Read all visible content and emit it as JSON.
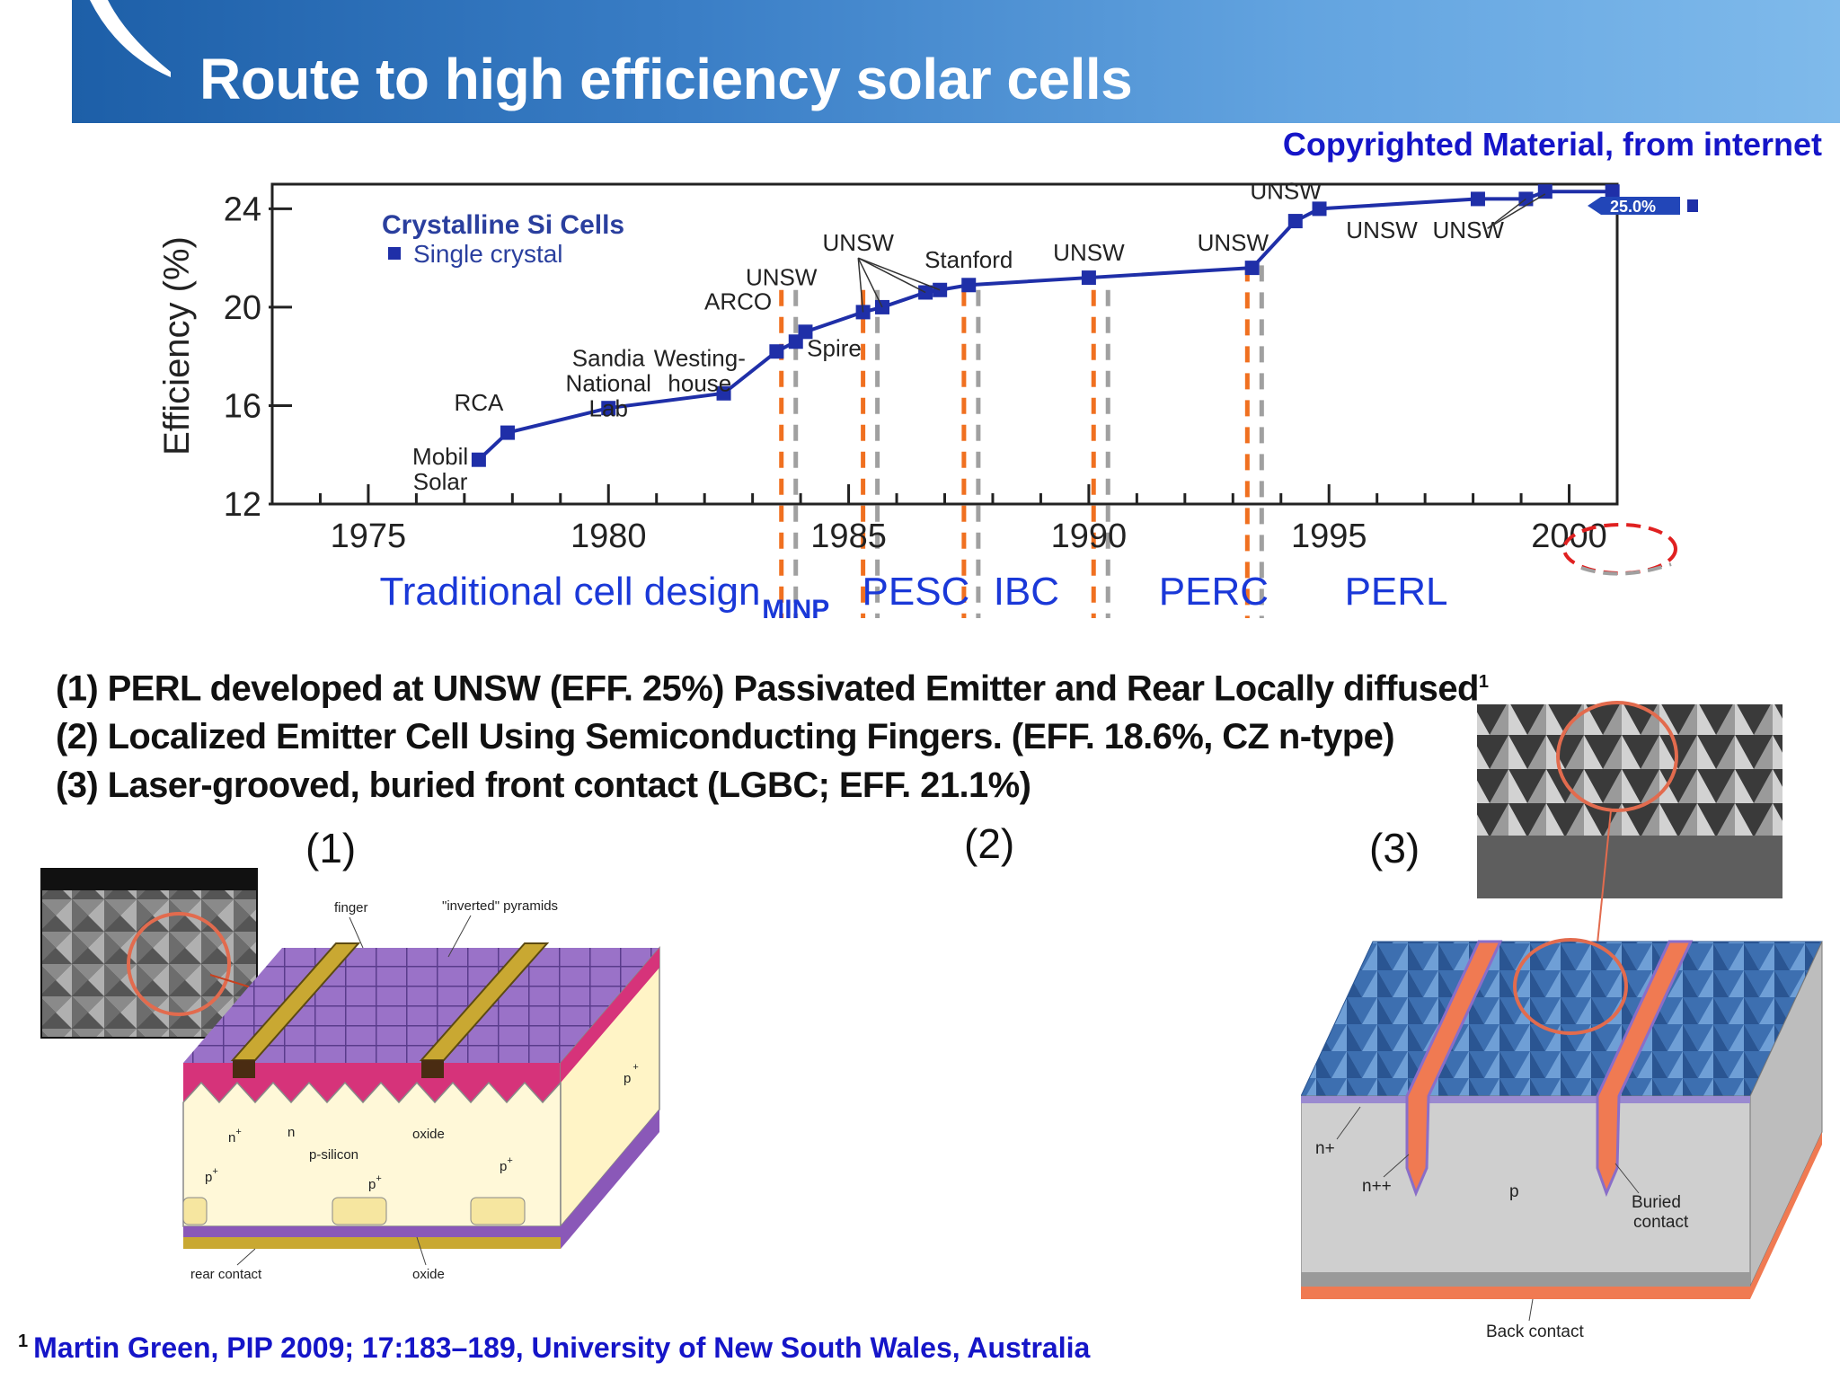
{
  "header": {
    "title": "Route to high efficiency solar cells",
    "copyright": "Copyrighted Material, from internet"
  },
  "chart_data": {
    "type": "line",
    "title": "Crystalline Si Cells",
    "legend": "Single crystal",
    "legend_position": "top-left",
    "ylabel": "Efficiency (%)",
    "xlabel": "",
    "xlim": [
      1973,
      2001
    ],
    "ylim": [
      12,
      25
    ],
    "xticks": [
      1975,
      1980,
      1985,
      1990,
      1995,
      2000
    ],
    "yticks": [
      12,
      16,
      20,
      24
    ],
    "grid": false,
    "series": [
      {
        "name": "Single crystal",
        "x": [
          1977.3,
          1977.9,
          1980.0,
          1982.4,
          1983.5,
          1983.9,
          1984.1,
          1985.3,
          1985.7,
          1986.6,
          1986.9,
          1987.5,
          1990.0,
          1993.4,
          1994.3,
          1994.8,
          1998.1,
          1999.1,
          1999.5,
          2000.9
        ],
        "y": [
          13.8,
          14.9,
          15.9,
          16.5,
          18.2,
          18.6,
          19.0,
          19.8,
          20.0,
          20.6,
          20.7,
          20.9,
          21.2,
          21.6,
          23.5,
          24.0,
          24.4,
          24.4,
          24.7,
          24.7
        ]
      }
    ],
    "point_labels": [
      {
        "text": "Mobil\nSolar",
        "x": 1976.5,
        "y": 13.6
      },
      {
        "text": "RCA",
        "x": 1977.3,
        "y": 15.8
      },
      {
        "text": "Sandia\nNational\nLab",
        "x": 1980.0,
        "y": 17.6
      },
      {
        "text": "ARCO",
        "x": 1982.7,
        "y": 19.9
      },
      {
        "text": "Westing-\nhouse",
        "x": 1981.9,
        "y": 17.6
      },
      {
        "text": "UNSW",
        "x": 1983.6,
        "y": 20.9
      },
      {
        "text": "Spire",
        "x": 1984.7,
        "y": 18.0
      },
      {
        "text": "UNSW",
        "x": 1985.2,
        "y": 22.3
      },
      {
        "text": "Stanford",
        "x": 1987.5,
        "y": 21.6
      },
      {
        "text": "UNSW",
        "x": 1990.0,
        "y": 21.9
      },
      {
        "text": "UNSW",
        "x": 1993.0,
        "y": 22.3
      },
      {
        "text": "UNSW",
        "x": 1994.1,
        "y": 24.4
      },
      {
        "text": "UNSW",
        "x": 1996.1,
        "y": 22.8
      },
      {
        "text": "UNSW",
        "x": 1997.9,
        "y": 22.8
      }
    ],
    "record_label": "25.0%",
    "eras": [
      {
        "label": "Traditional cell design",
        "x": 1979.2
      },
      {
        "label": "MINP",
        "x": 1983.9
      },
      {
        "label": "PESC",
        "x": 1986.4
      },
      {
        "label": "IBC",
        "x": 1988.7
      },
      {
        "label": "PERC",
        "x": 1992.6
      },
      {
        "label": "PERL",
        "x": 1996.4
      }
    ],
    "era_dividers": [
      1983.6,
      1985.3,
      1987.4,
      1990.1,
      1993.3
    ]
  },
  "notes": [
    "(1) PERL developed at UNSW (EFF. 25%) Passivated Emitter and Rear Locally diffused",
    "(2) Localized Emitter Cell Using Semiconducting Fingers. (EFF. 18.6%, CZ n-type)",
    "(3) Laser-grooved, buried front contact (LGBC; EFF. 21.1%)"
  ],
  "note_ref": "1",
  "panels": [
    "(1)",
    "(2)",
    "(3)"
  ],
  "fig1": {
    "finger": "finger",
    "pyramids": "\"inverted\" pyramids",
    "n_plus": "n",
    "n_plus_sup": "+",
    "n": "n",
    "oxide": "oxide",
    "p_silicon": "p-silicon",
    "p_plus": "p",
    "p_plus_sup": "+",
    "p": "p",
    "rear_contact": "rear contact",
    "oxide_bottom": "oxide"
  },
  "fig3": {
    "n_plus": "n+",
    "n_pp": "n++",
    "p": "p",
    "buried": "Buried",
    "contact": "contact",
    "back_contact": "Back contact"
  },
  "footnote": {
    "ref": "1",
    "text": "Martin Green, PIP 2009; 17:183–189, University of New South Wales, Australia"
  },
  "colors": {
    "series": "#1f2fa8",
    "header": "#1d5fa8",
    "era_text": "#1a38d8",
    "orange_divider": "#f07020",
    "gray_divider": "#a0a0a0",
    "copyright": "#1515c8"
  }
}
